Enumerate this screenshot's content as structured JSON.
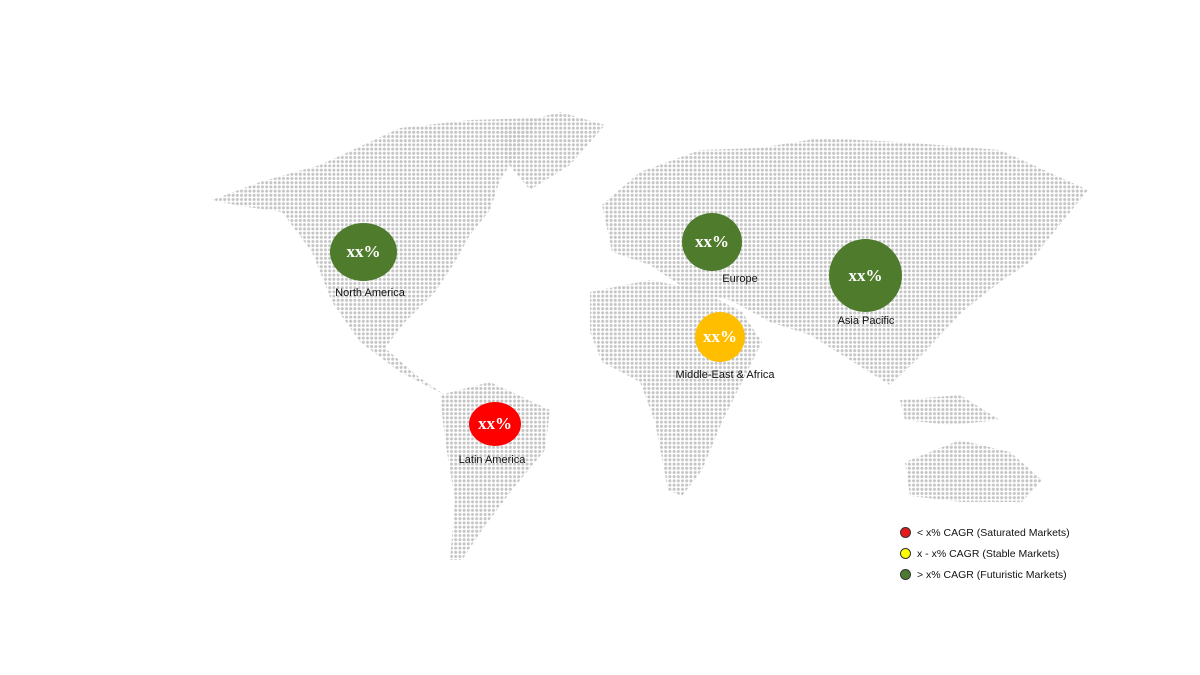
{
  "regions": [
    {
      "name": "North America",
      "value": "xx%",
      "color": "#4e7c2c"
    },
    {
      "name": "Europe",
      "value": "xx%",
      "color": "#4e7c2c"
    },
    {
      "name": "Asia Pacific",
      "value": "xx%",
      "color": "#4e7c2c"
    },
    {
      "name": "Middle-East & Africa",
      "value": "xx%",
      "color": "#ffbf00"
    },
    {
      "name": "Latin America",
      "value": "xx%",
      "color": "#ff0000"
    }
  ],
  "legend": [
    {
      "label": "< x% CAGR (Saturated Markets)",
      "color": "#e8191a"
    },
    {
      "label": "x - x% CAGR (Stable Markets)",
      "color": "#ffff00"
    },
    {
      "label": "> x% CAGR (Futuristic Markets)",
      "color": "#4d7a32"
    }
  ]
}
